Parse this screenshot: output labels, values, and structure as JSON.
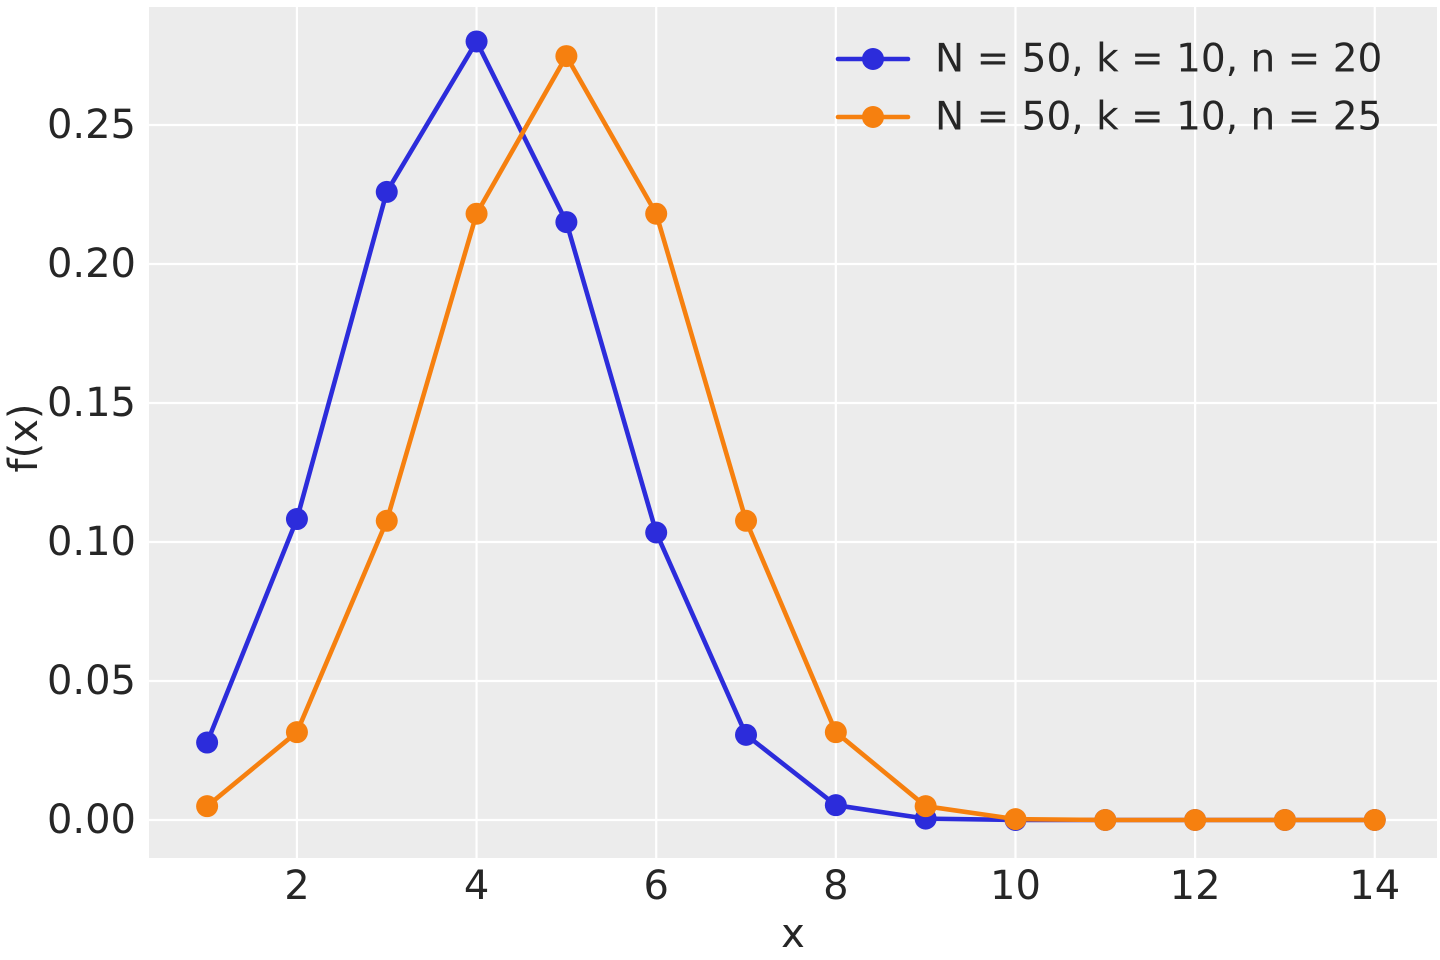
{
  "chart_data": {
    "type": "line",
    "title": "",
    "xlabel": "x",
    "ylabel": "f(x)",
    "x": [
      1,
      2,
      3,
      4,
      5,
      6,
      7,
      8,
      9,
      10,
      11,
      12,
      13,
      14
    ],
    "series": [
      {
        "name": "N = 50, k = 10, n = 20",
        "color": "#2c2cdb",
        "values": [
          0.02786,
          0.10826,
          0.22593,
          0.28006,
          0.21508,
          0.10341,
          0.03064,
          0.00533,
          0.00049,
          2e-05,
          0.0,
          0.0,
          0.0,
          0.0
        ]
      },
      {
        "name": "N = 50, k = 10, n = 25",
        "color": "#f6800f",
        "values": [
          0.00497,
          0.03159,
          0.10763,
          0.21809,
          0.2748,
          0.21809,
          0.10763,
          0.03159,
          0.00497,
          0.00032,
          0.0,
          0.0,
          0.0,
          0.0
        ]
      }
    ],
    "xticks": [
      {
        "label": "2",
        "value": 2
      },
      {
        "label": "4",
        "value": 4
      },
      {
        "label": "6",
        "value": 6
      },
      {
        "label": "8",
        "value": 8
      },
      {
        "label": "10",
        "value": 10
      },
      {
        "label": "12",
        "value": 12
      },
      {
        "label": "14",
        "value": 14
      }
    ],
    "yticks": [
      {
        "label": "0.00",
        "value": 0.0
      },
      {
        "label": "0.05",
        "value": 0.05
      },
      {
        "label": "0.10",
        "value": 0.1
      },
      {
        "label": "0.15",
        "value": 0.15
      },
      {
        "label": "0.20",
        "value": 0.2
      },
      {
        "label": "0.25",
        "value": 0.25
      }
    ],
    "xlim": [
      0.353,
      14.693
    ],
    "ylim": [
      -0.01367,
      0.29245
    ],
    "grid": true,
    "legend_position": "upper right",
    "plot_background": "#ececec",
    "grid_color": "#ffffff",
    "text_color": "#262626",
    "marker": "circle",
    "marker_radius": 11
  }
}
